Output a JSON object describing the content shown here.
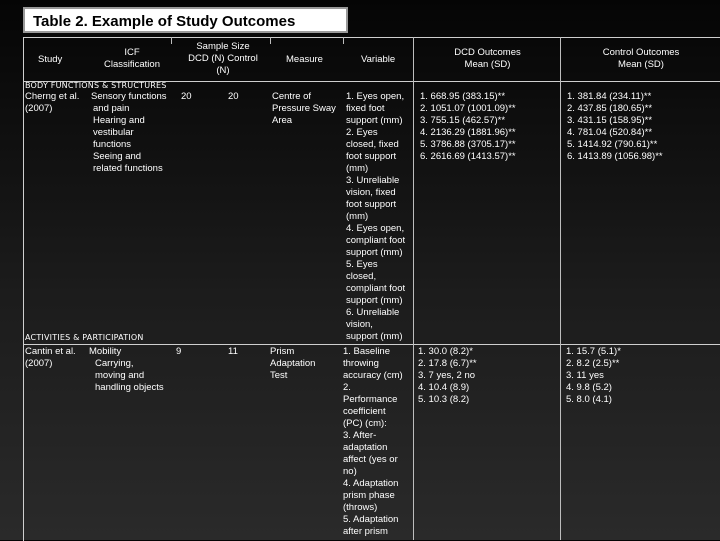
{
  "title": "Table 2. Example of Study Outcomes",
  "headers": {
    "study": "Study",
    "icf": [
      "ICF",
      "Classification"
    ],
    "sample": [
      "Sample Size",
      "DCD (N)  Control",
      "(N)"
    ],
    "measure": "Measure",
    "variable": "Variable",
    "dcd": [
      "DCD Outcomes",
      "Mean (SD)"
    ],
    "control": [
      "Control Outcomes",
      "Mean (SD)"
    ]
  },
  "sections": {
    "body": "BODY FUNCTIONS & STRUCTURES",
    "activities": "ACTIVITIES & PARTICIPATION"
  },
  "rows": [
    {
      "study": [
        "Cherng et al.",
        "(2007)"
      ],
      "icf": [
        "Sensory functions",
        "and pain",
        "Hearing and",
        "vestibular",
        "functions",
        "Seeing and",
        "related functions"
      ],
      "dcd_n": "20",
      "control_n": "20",
      "measure": [
        "Centre of",
        "Pressure Sway",
        "Area"
      ],
      "variable": [
        "1. Eyes open,",
        "fixed foot",
        "support (mm)",
        "2. Eyes",
        "closed, fixed",
        "foot support",
        "(mm)",
        "3. Unreliable",
        "vision, fixed",
        "foot support",
        "(mm)",
        "4. Eyes open,",
        "compliant foot",
        "support (mm)",
        "5. Eyes",
        "closed,",
        "compliant foot",
        "support (mm)",
        "6. Unreliable",
        "vision,",
        "support (mm)"
      ],
      "dcd": [
        "1. 668.95 (383.15)**",
        "2. 1051.07 (1001.09)**",
        "3. 755.15 (462.57)**",
        "4. 2136.29 (1881.96)**",
        "5. 3786.88 (3705.17)**",
        "6. 2616.69 (1413.57)**"
      ],
      "control": [
        "1. 381.84 (234.11)**",
        "2. 437.85 (180.65)**",
        "3. 431.15 (158.95)**",
        "4. 781.04 (520.84)**",
        "5. 1414.92 (790.61)**",
        "6. 1413.89 (1056.98)**"
      ]
    },
    {
      "study": [
        "Cantin et al.",
        "(2007)"
      ],
      "icf": [
        "Mobility",
        "Carrying,",
        "moving and",
        "handling objects"
      ],
      "dcd_n": "9",
      "control_n": "11",
      "measure": [
        "Prism",
        "Adaptation",
        "Test"
      ],
      "variable": [
        "1. Baseline",
        "throwing",
        "accuracy (cm)",
        "2.",
        "Performance",
        "coefficient",
        "(PC) (cm):",
        "3. After-",
        "adaptation",
        "affect (yes or",
        "no)",
        "4. Adaptation",
        "prism phase",
        "(throws)",
        "5. Adaptation",
        "after prism"
      ],
      "dcd": [
        "1. 30.0 (8.2)*",
        "2. 17.8 (6.7)**",
        "3. 7 yes, 2 no",
        "4. 10.4 (8.9)",
        "5. 10.3 (8.2)"
      ],
      "control": [
        "1. 15.7 (5.1)*",
        "2. 8.2 (2.5)**",
        "3. 11 yes",
        "4. 9.8 (5.2)",
        "5. 8.0 (4.1)"
      ]
    }
  ]
}
